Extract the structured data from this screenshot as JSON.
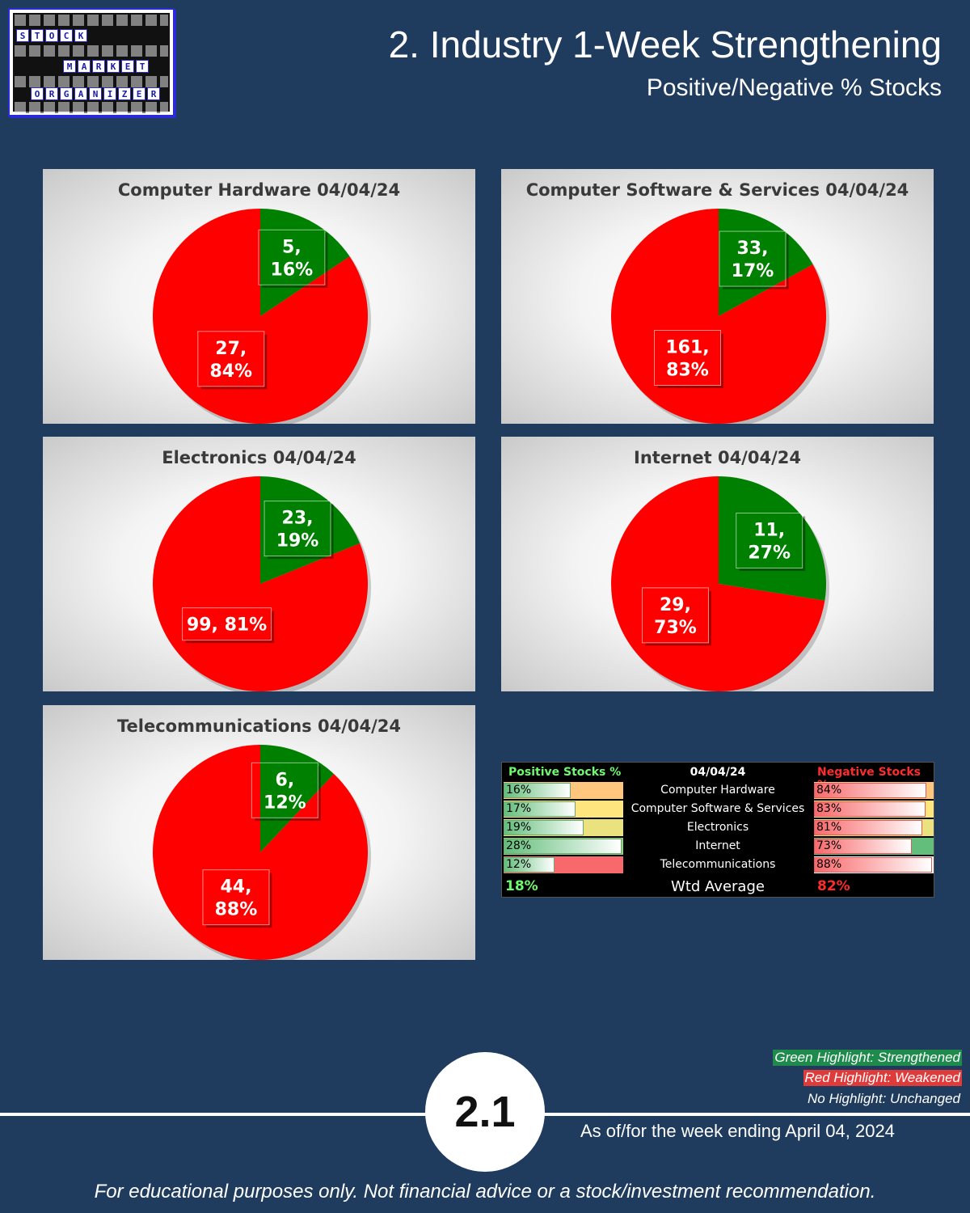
{
  "header": {
    "title": "2. Industry 1-Week Strengthening",
    "subtitle": "Positive/Negative % Stocks",
    "logo_rows": [
      [
        "S",
        "T",
        "O",
        "C",
        "K"
      ],
      [
        "M",
        "A",
        "R",
        "K",
        "E",
        "T"
      ],
      [
        "O",
        "R",
        "G",
        "A",
        "N",
        "I",
        "Z",
        "E",
        "R"
      ]
    ]
  },
  "chart_data": [
    {
      "type": "pie",
      "title": "Computer Hardware 04/04/24",
      "slices": [
        {
          "name": "",
          "value": 5,
          "percent": 16,
          "label": [
            "5,",
            "16%"
          ],
          "color": "#008000"
        },
        {
          "name": "",
          "value": 27,
          "percent": 84,
          "label": [
            "27,",
            "84%"
          ],
          "color": "#ff0000"
        }
      ]
    },
    {
      "type": "pie",
      "title": "Computer Software & Services 04/04/24",
      "slices": [
        {
          "name": "",
          "value": 33,
          "percent": 17,
          "label": [
            "33,",
            "17%"
          ],
          "color": "#008000"
        },
        {
          "name": "",
          "value": 161,
          "percent": 83,
          "label": [
            "161,",
            "83%"
          ],
          "color": "#ff0000"
        }
      ]
    },
    {
      "type": "pie",
      "title": "Electronics 04/04/24",
      "slices": [
        {
          "name": "",
          "value": 23,
          "percent": 19,
          "label": [
            "23,",
            "19%"
          ],
          "color": "#008000"
        },
        {
          "name": "",
          "value": 99,
          "percent": 81,
          "label": [
            "99, 81%"
          ],
          "color": "#ff0000"
        }
      ]
    },
    {
      "type": "pie",
      "title": "Internet 04/04/24",
      "slices": [
        {
          "name": "",
          "value": 11,
          "percent": 27,
          "label": [
            "11,",
            "27%"
          ],
          "color": "#008000"
        },
        {
          "name": "",
          "value": 29,
          "percent": 73,
          "label": [
            "29,",
            "73%"
          ],
          "color": "#ff0000"
        }
      ]
    },
    {
      "type": "pie",
      "title": "Telecommunications 04/04/24",
      "slices": [
        {
          "name": "",
          "value": 6,
          "percent": 12,
          "label": [
            "6,",
            "12%"
          ],
          "color": "#008000"
        },
        {
          "name": "",
          "value": 44,
          "percent": 88,
          "label": [
            "44,",
            "88%"
          ],
          "color": "#ff0000"
        }
      ]
    }
  ],
  "summary": {
    "pos_header": "Positive Stocks %",
    "date_header": "04/04/24",
    "neg_header": "Negative Stocks %",
    "rows": [
      {
        "industry": "Computer Hardware",
        "pos": "16%",
        "pos_value": 16,
        "neg": "84%",
        "neg_value": 84
      },
      {
        "industry": "Computer Software & Services",
        "pos": "17%",
        "pos_value": 17,
        "neg": "83%",
        "neg_value": 83
      },
      {
        "industry": "Electronics",
        "pos": "19%",
        "pos_value": 19,
        "neg": "81%",
        "neg_value": 81
      },
      {
        "industry": "Internet",
        "pos": "28%",
        "pos_value": 28,
        "neg": "73%",
        "neg_value": 73
      },
      {
        "industry": "Telecommunications",
        "pos": "12%",
        "pos_value": 12,
        "neg": "88%",
        "neg_value": 88
      }
    ],
    "avg_label": "Wtd Average",
    "avg_pos": "18%",
    "avg_neg": "82%"
  },
  "legend": {
    "green": "Green Highlight: Strengthened",
    "red": "Red Highlight: Weakened",
    "none": "No Highlight: Unchanged"
  },
  "footer": {
    "page_number": "2.1",
    "as_of": "As of/for the week ending April 04, 2024",
    "disclaimer": "For educational purposes only. Not financial advice or a stock/investment recommendation."
  },
  "colors": {
    "positive": "#008000",
    "negative": "#ff0000",
    "background": "#1f3c5f"
  }
}
